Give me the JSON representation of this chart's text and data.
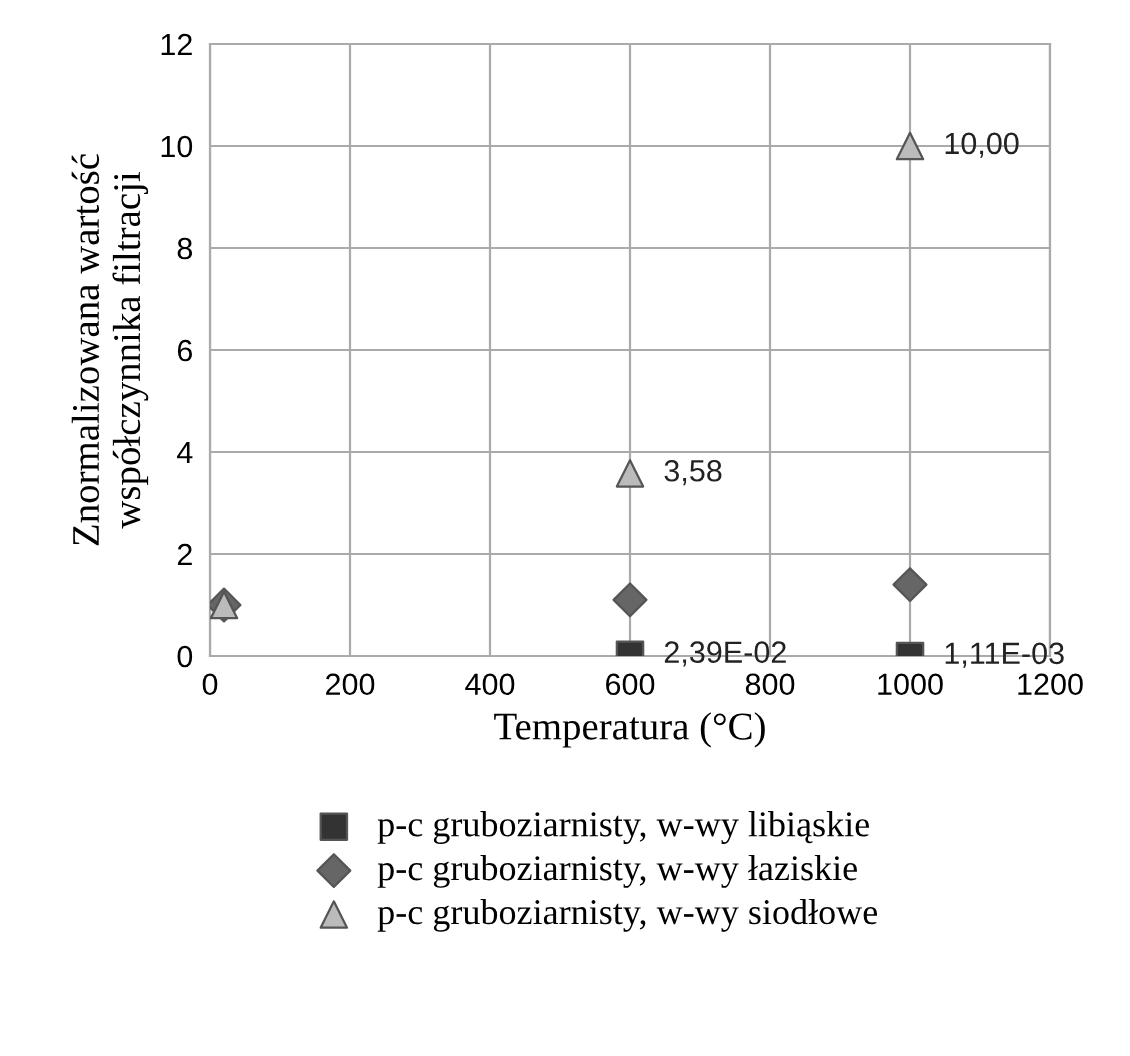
{
  "chart_data": {
    "type": "scatter",
    "xlabel": "Temperatura (°C)",
    "ylabel": "Znormalizowana wartość\nwspółczynnika filtracji",
    "xlim": [
      0,
      1200
    ],
    "xticks": [
      0,
      200,
      400,
      600,
      800,
      1000,
      1200
    ],
    "ylim": [
      0,
      12
    ],
    "yticks": [
      0,
      2,
      4,
      6,
      8,
      10,
      12
    ],
    "grid": true,
    "legend": "bottom",
    "series": [
      {
        "name": "p-c gruboziarnisty, w-wy libiąskie",
        "color": "#333333",
        "marker": "square",
        "x": [
          600,
          1000
        ],
        "values": [
          0.0239,
          0.00111
        ],
        "value_labels": [
          "2,39E-02",
          "1,11E-03"
        ]
      },
      {
        "name": "p-c gruboziarnisty, w-wy łaziskie",
        "color": "#666666",
        "marker": "diamond",
        "x": [
          20,
          600,
          1000
        ],
        "values": [
          1,
          1.1,
          1.4
        ],
        "value_labels": [
          null,
          null,
          null
        ]
      },
      {
        "name": "p-c gruboziarnisty, w-wy siodłowe",
        "color": "#bbbbbb",
        "marker": "triangle",
        "x": [
          20,
          600,
          1000
        ],
        "values": [
          1,
          3.58,
          10.0
        ],
        "value_labels": [
          null,
          "3,58",
          "10,00"
        ]
      }
    ]
  }
}
